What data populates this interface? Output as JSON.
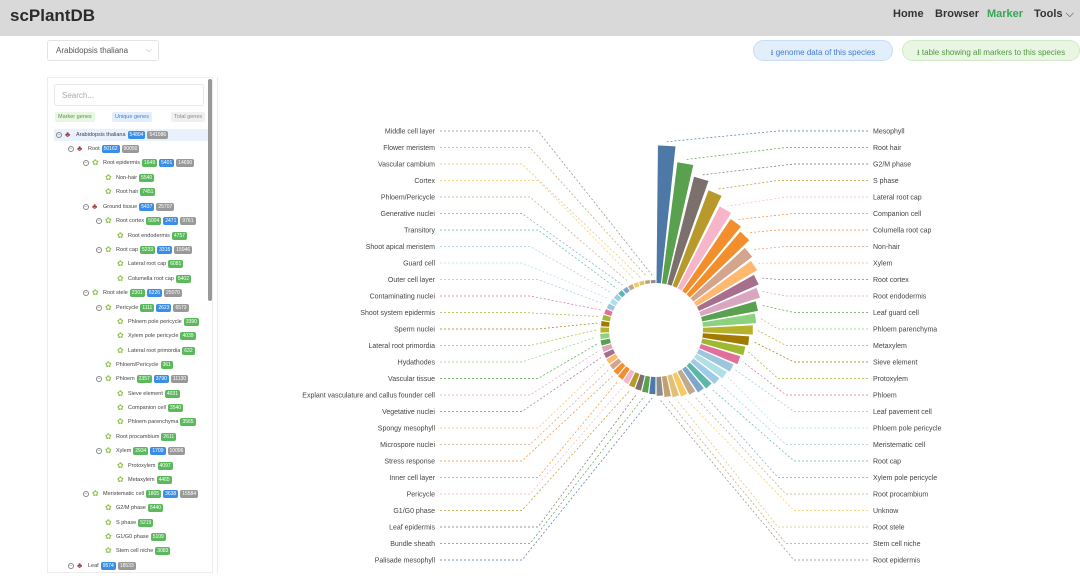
{
  "header": {
    "logo": "scPlantDB",
    "nav": [
      {
        "label": "Home",
        "active": false
      },
      {
        "label": "Browser",
        "active": false
      },
      {
        "label": "Marker",
        "active": true
      },
      {
        "label": "Tools",
        "active": false,
        "dropdown": true
      }
    ]
  },
  "controls": {
    "species": "Arabidopsis thaliana",
    "genome_button": "⭳ genome data of this species",
    "table_button": "⭳ table showing all markers to this species"
  },
  "sidebar": {
    "search_placeholder": "Search...",
    "legend": [
      "Marker genes",
      "Unique genes",
      "Total genes"
    ],
    "tree": [
      {
        "label": "Arabidopsis thaliana",
        "level": 0,
        "icon": "species",
        "badges": [
          "54804",
          "541086"
        ],
        "bc": [
          "b",
          "t"
        ]
      },
      {
        "label": "Root",
        "level": 1,
        "icon": "organ",
        "badges": [
          "50162",
          "90050"
        ],
        "bc": [
          "b",
          "t"
        ]
      },
      {
        "label": "Root epidermis",
        "level": 2,
        "icon": "cell",
        "badges": [
          "1649",
          "5401",
          "14690"
        ],
        "bc": [
          "g",
          "b",
          "t"
        ]
      },
      {
        "label": "Non-hair",
        "level": 3,
        "icon": "cell",
        "badges": [
          "5540"
        ],
        "bc": [
          "g"
        ]
      },
      {
        "label": "Root hair",
        "level": 3,
        "icon": "cell",
        "badges": [
          "7451"
        ],
        "bc": [
          "g"
        ]
      },
      {
        "label": "Ground tissue",
        "level": 2,
        "icon": "organ",
        "badges": [
          "5437",
          "25707"
        ],
        "bc": [
          "b",
          "t"
        ]
      },
      {
        "label": "Root cortex",
        "level": 3,
        "icon": "cell",
        "badges": [
          "5004",
          "2471",
          "9761"
        ],
        "bc": [
          "g",
          "b",
          "t"
        ]
      },
      {
        "label": "Root endodermis",
        "level": 4,
        "icon": "cell",
        "badges": [
          "4757"
        ],
        "bc": [
          "g"
        ]
      },
      {
        "label": "Root cap",
        "level": 3,
        "icon": "cell",
        "badges": [
          "5233",
          "3315",
          "15946"
        ],
        "bc": [
          "g",
          "b",
          "t"
        ]
      },
      {
        "label": "Lateral root cap",
        "level": 4,
        "icon": "cell",
        "badges": [
          "6081"
        ],
        "bc": [
          "g"
        ]
      },
      {
        "label": "Columella root cap",
        "level": 4,
        "icon": "cell",
        "badges": [
          "5402"
        ],
        "bc": [
          "g"
        ]
      },
      {
        "label": "Root stele",
        "level": 2,
        "icon": "cell",
        "badges": [
          "2301",
          "6226",
          "25070"
        ],
        "bc": [
          "g",
          "b",
          "t"
        ]
      },
      {
        "label": "Pericycle",
        "level": 3,
        "icon": "cell",
        "badges": [
          "1111",
          "2623",
          "6573"
        ],
        "bc": [
          "g",
          "b",
          "t"
        ]
      },
      {
        "label": "Phloem pole pericycle",
        "level": 4,
        "icon": "cell",
        "badges": [
          "3390"
        ],
        "bc": [
          "g"
        ]
      },
      {
        "label": "Xylem pole pericycle",
        "level": 4,
        "icon": "cell",
        "badges": [
          "4039"
        ],
        "bc": [
          "g"
        ]
      },
      {
        "label": "Lateral root primordia",
        "level": 4,
        "icon": "cell",
        "badges": [
          "632"
        ],
        "bc": [
          "g"
        ]
      },
      {
        "label": "Phloem/Pericycle",
        "level": 3,
        "icon": "cell",
        "badges": [
          "361"
        ],
        "bc": [
          "g"
        ]
      },
      {
        "label": "Phloem",
        "level": 3,
        "icon": "cell",
        "badges": [
          "2357",
          "3790",
          "11130"
        ],
        "bc": [
          "g",
          "b",
          "t"
        ]
      },
      {
        "label": "Sieve element",
        "level": 4,
        "icon": "cell",
        "badges": [
          "4031"
        ],
        "bc": [
          "g"
        ]
      },
      {
        "label": "Companion cell",
        "level": 4,
        "icon": "cell",
        "badges": [
          "3540"
        ],
        "bc": [
          "g"
        ]
      },
      {
        "label": "Phloem parenchyma",
        "level": 4,
        "icon": "cell",
        "badges": [
          "3565"
        ],
        "bc": [
          "g"
        ]
      },
      {
        "label": "Root procambium",
        "level": 3,
        "icon": "cell",
        "badges": [
          "2611"
        ],
        "bc": [
          "g"
        ]
      },
      {
        "label": "Xylem",
        "level": 3,
        "icon": "cell",
        "badges": [
          "2934",
          "1709",
          "10096"
        ],
        "bc": [
          "g",
          "b",
          "t"
        ]
      },
      {
        "label": "Protoxylem",
        "level": 4,
        "icon": "cell",
        "badges": [
          "4097"
        ],
        "bc": [
          "g"
        ]
      },
      {
        "label": "Metaxylem",
        "level": 4,
        "icon": "cell",
        "badges": [
          "4465"
        ],
        "bc": [
          "g"
        ]
      },
      {
        "label": "Meristematic cell",
        "level": 2,
        "icon": "cell",
        "badges": [
          "1805",
          "3638",
          "15584"
        ],
        "bc": [
          "g",
          "b",
          "t"
        ]
      },
      {
        "label": "G2/M phase",
        "level": 3,
        "icon": "cell",
        "badges": [
          "5440"
        ],
        "bc": [
          "g"
        ]
      },
      {
        "label": "S phase",
        "level": 3,
        "icon": "cell",
        "badges": [
          "5219"
        ],
        "bc": [
          "g"
        ]
      },
      {
        "label": "G1/G0 phase",
        "level": 3,
        "icon": "cell",
        "badges": [
          "5109"
        ],
        "bc": [
          "g"
        ]
      },
      {
        "label": "Stem cell niche",
        "level": 3,
        "icon": "cell",
        "badges": [
          "3083"
        ],
        "bc": [
          "g"
        ]
      },
      {
        "label": "Leaf",
        "level": 1,
        "icon": "organ",
        "badges": [
          "9574",
          "18533"
        ],
        "bc": [
          "b",
          "t"
        ]
      }
    ]
  },
  "chart_data": {
    "type": "bar",
    "layout": "polar",
    "right_labels": [
      "Mesophyll",
      "Root hair",
      "G2/M phase",
      "S phase",
      "Lateral root cap",
      "Companion cell",
      "Columella root cap",
      "Non-hair",
      "Xylem",
      "Root cortex",
      "Root endodermis",
      "Leaf guard cell",
      "Phloem parenchyma",
      "Metaxylem",
      "Sieve element",
      "Protoxylem",
      "Phloem",
      "Leaf pavement cell",
      "Phloem pole pericycle",
      "Meristematic cell",
      "Root cap",
      "Xylem pole pericycle",
      "Root procambium",
      "Unknow",
      "Root stele",
      "Stem cell niche",
      "Root epidermis"
    ],
    "left_labels": [
      "Middle cell layer",
      "Flower meristem",
      "Vascular cambium",
      "Cortex",
      "Phloem/Pericycle",
      "Generative nuclei",
      "Transitory",
      "Shoot apical meristem",
      "Guard cell",
      "Outer cell layer",
      "Contaminating nuclei",
      "Shoot system epidermis",
      "Sperm nuclei",
      "Lateral root primordia",
      "Hydathodes",
      "Vascular tissue",
      "Explant vasculature and callus founder cell",
      "Vegetative nuclei",
      "Spongy mesophyll",
      "Microspore nuclei",
      "Stress response",
      "Inner cell layer",
      "Pericycle",
      "G1/G0 phase",
      "Leaf epidermis",
      "Bundle sheath",
      "Palisade mesophyll"
    ],
    "colors": [
      "#4e79a7",
      "#59a14f",
      "#7b706b",
      "#b89a2c",
      "#f6b5c9",
      "#f28e2b",
      "#f28e2b",
      "#d4a48c",
      "#ffb870",
      "#a86f8d",
      "#d9a6c0",
      "#59a14f",
      "#8cd17d",
      "#b6b32a",
      "#a37a00",
      "#9fb830",
      "#e0709a",
      "#9ec6df",
      "#b0e0e6",
      "#a0cbe8",
      "#5bb7a8",
      "#7fa7c9",
      "#c1a98d",
      "#f7c95f",
      "#e0c07a",
      "#c4a06d",
      "#8c8c8c"
    ],
    "values": [
      16.0,
      14.2,
      12.9,
      11.9,
      10.7,
      10.1,
      9.6,
      8.6,
      8.2,
      7.6,
      7.2,
      6.6,
      6.2,
      5.8,
      5.4,
      5.1,
      4.8,
      4.4,
      4.1,
      3.8,
      3.5,
      3.3,
      3.0,
      2.8,
      2.6,
      2.4,
      2.2,
      2.0,
      1.9,
      1.8,
      1.7,
      1.6,
      1.5,
      1.4,
      1.3,
      1.25,
      1.2,
      1.15,
      1.1,
      1.05,
      1.0,
      0.95,
      0.9,
      0.85,
      0.8,
      0.75,
      0.7,
      0.65,
      0.6,
      0.55,
      0.5,
      0.45,
      0.4,
      0.35
    ]
  }
}
